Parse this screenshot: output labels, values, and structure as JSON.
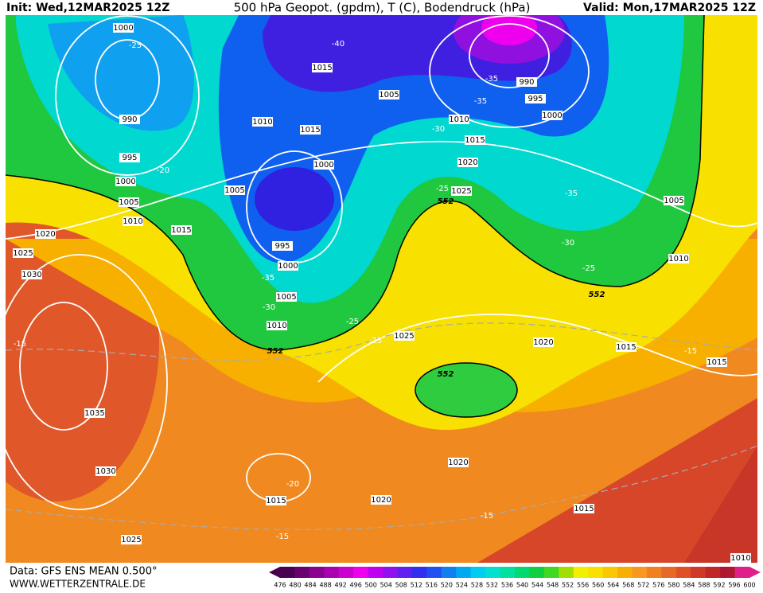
{
  "header": {
    "init": "Init: Wed,12MAR2025 12Z",
    "title": "500 hPa Geopot. (gpdm), T (C), Bodendruck (hPa)",
    "valid": "Valid: Mon,17MAR2025 12Z"
  },
  "footer": {
    "data": "Data: GFS ENS MEAN 0.500°",
    "site": "WWW.WETTERZENTRALE.DE"
  },
  "contour_labels": {
    "pressure": [
      1000,
      990,
      995,
      1000,
      1005,
      1010,
      1015,
      1020,
      1025,
      1030,
      1035,
      1030,
      1025,
      1015,
      1005,
      1010,
      1015,
      1000,
      1005,
      995,
      1000,
      1005,
      1010,
      990,
      995,
      1000,
      1010,
      1015,
      1020,
      1025,
      1005,
      1010,
      1025,
      1020,
      1015,
      1015,
      1020,
      1015,
      1020,
      1015,
      1010
    ],
    "temperature": [
      -25,
      -20,
      -40,
      -35,
      -35,
      -30,
      -25,
      -35,
      -30,
      -25,
      -35,
      -30,
      -25,
      -25,
      -15,
      -15,
      -20,
      -15,
      -15
    ],
    "geopotential": [
      552,
      552,
      552,
      552
    ]
  },
  "legend": {
    "levels": [
      476,
      480,
      484,
      488,
      492,
      496,
      500,
      504,
      508,
      512,
      516,
      520,
      524,
      528,
      532,
      536,
      540,
      544,
      548,
      552,
      556,
      560,
      564,
      568,
      572,
      576,
      580,
      584,
      588,
      592,
      596,
      600
    ],
    "colors": [
      "#4a0050",
      "#6a0070",
      "#8a0090",
      "#aa00b0",
      "#cc00d0",
      "#ee00ee",
      "#c000f0",
      "#9010f0",
      "#6020f0",
      "#3030f0",
      "#2050f0",
      "#1080f0",
      "#00a8f0",
      "#00ccf0",
      "#00e0d0",
      "#00e0a0",
      "#00d870",
      "#10d040",
      "#40d820",
      "#a0e000",
      "#f0f000",
      "#f8e000",
      "#f8c800",
      "#f8b000",
      "#f89820",
      "#f08020",
      "#e86828",
      "#e05028",
      "#d03828",
      "#c02828",
      "#b01830",
      "#e0208a"
    ]
  }
}
